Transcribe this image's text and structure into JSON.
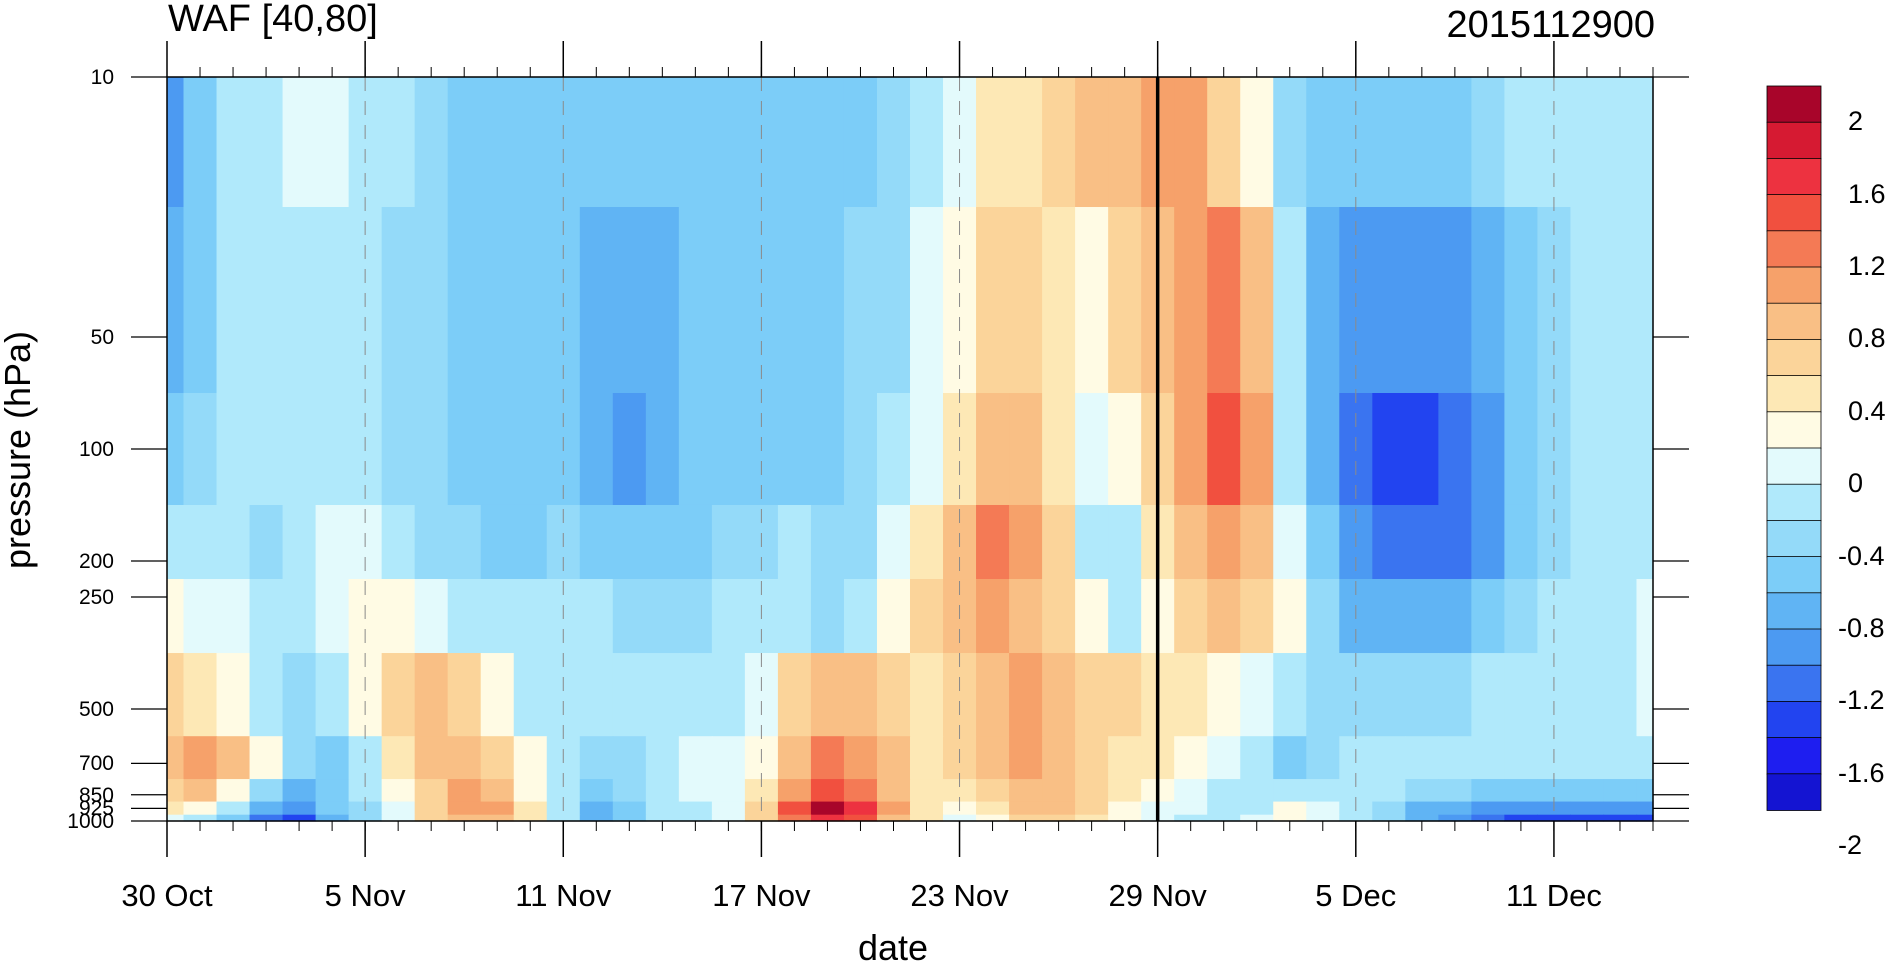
{
  "chart_data": {
    "type": "heatmap",
    "subtype": "filled-contour time-pressure cross section",
    "title": "WAF [40,80]",
    "subtitle": "2015112900",
    "xlabel": "date",
    "ylabel": "pressure (hPa)",
    "x_start": "2015-10-30",
    "x_end": "2015-12-14",
    "x_ticks": [
      {
        "date": "2015-10-30",
        "label": "30 Oct"
      },
      {
        "date": "2015-11-05",
        "label": "5 Nov"
      },
      {
        "date": "2015-11-11",
        "label": "11 Nov"
      },
      {
        "date": "2015-11-17",
        "label": "17 Nov"
      },
      {
        "date": "2015-11-23",
        "label": "23 Nov"
      },
      {
        "date": "2015-11-29",
        "label": "29 Nov"
      },
      {
        "date": "2015-12-05",
        "label": "5 Dec"
      },
      {
        "date": "2015-12-11",
        "label": "11 Dec"
      }
    ],
    "y_levels_hPa": [
      10,
      50,
      100,
      200,
      250,
      500,
      700,
      850,
      925,
      1000
    ],
    "y_tick_labels": [
      "10",
      "50",
      "100",
      "200",
      "250",
      "500",
      "700",
      "850",
      "925",
      "1000"
    ],
    "ylim": [
      1000,
      10
    ],
    "y_scale": "log",
    "marked_date": "2015-11-29",
    "colorbar": {
      "levels": [
        -2.2,
        -2,
        -1.8,
        -1.6,
        -1.4,
        -1.2,
        -1,
        -0.8,
        -0.6,
        -0.4,
        -0.2,
        0,
        0.2,
        0.4,
        0.6,
        0.8,
        1,
        1.2,
        1.4,
        1.6,
        1.8,
        2,
        2.2
      ],
      "labels": [
        "2",
        "1.6",
        "1.2",
        "0.8",
        "0.4",
        "0",
        "-0.4",
        "-0.8",
        "-1.2",
        "-1.6",
        "-2"
      ],
      "colors": [
        "#1414d2",
        "#1e1ef0",
        "#2244f0",
        "#3a74f0",
        "#4c9af2",
        "#60b4f4",
        "#7ccdf8",
        "#94daf9",
        "#b0e9fb",
        "#e3fafc",
        "#fffbe4",
        "#fde8b5",
        "#fbd49a",
        "#f9bf85",
        "#f6a16a",
        "#f47a55",
        "#f1503f",
        "#ed3240",
        "#d61a32",
        "#a8052a"
      ]
    },
    "grid": "dashed vertical lines at date ticks",
    "legend": "colorbar at right",
    "values": [
      [
        -1.3,
        -1.0,
        -0.6,
        -0.5,
        -0.4,
        -0.4,
        -0.5,
        -0.6,
        -0.8,
        -0.9,
        -0.9,
        -1.0,
        -1.0,
        -1.0,
        -1.0,
        -1.0,
        -1.0,
        -1.0,
        -1.0,
        -1.0,
        -0.9,
        -0.9,
        -0.8,
        -0.6,
        -0.3,
        0.0,
        0.1,
        0.3,
        0.4,
        0.5,
        0.7,
        0.6,
        0.3,
        -0.2,
        -0.8,
        -1.0,
        -1.0,
        -1.0,
        -1.0,
        -1.0,
        -0.8,
        -0.6,
        -0.5,
        -0.5,
        -0.5,
        -0.5
      ],
      [
        -1.2,
        -0.9,
        -0.6,
        -0.5,
        -0.5,
        -0.5,
        -0.6,
        -0.7,
        -0.8,
        -1.0,
        -1.0,
        -1.0,
        -1.0,
        -1.1,
        -1.2,
        -1.1,
        -1.0,
        -1.0,
        -1.0,
        -0.9,
        -0.9,
        -0.8,
        -0.7,
        -0.4,
        -0.1,
        0.2,
        0.3,
        0.0,
        -0.1,
        0.2,
        0.5,
        0.7,
        0.8,
        0.4,
        -0.5,
        -1.1,
        -1.3,
        -1.4,
        -1.4,
        -1.4,
        -1.2,
        -0.9,
        -0.7,
        -0.6,
        -0.5,
        -0.5
      ],
      [
        -0.9,
        -0.7,
        -0.5,
        -0.5,
        -0.5,
        -0.5,
        -0.6,
        -0.7,
        -0.8,
        -1.0,
        -1.0,
        -1.0,
        -0.9,
        -1.2,
        -1.3,
        -1.2,
        -1.0,
        -1.0,
        -1.0,
        -0.9,
        -0.9,
        -0.8,
        -0.6,
        -0.3,
        0.1,
        0.4,
        0.5,
        0.1,
        -0.4,
        -0.2,
        0.3,
        0.7,
        1.0,
        0.6,
        -0.5,
        -1.2,
        -1.5,
        -1.7,
        -1.7,
        -1.6,
        -1.3,
        -1.0,
        -0.7,
        -0.6,
        -0.5,
        -0.5
      ],
      [
        -0.6,
        -0.5,
        -0.6,
        -0.7,
        -0.5,
        -0.4,
        -0.4,
        -0.6,
        -0.7,
        -0.8,
        -0.9,
        -0.9,
        -0.8,
        -0.9,
        -1.0,
        -1.0,
        -0.9,
        -0.8,
        -0.7,
        -0.6,
        -0.8,
        -0.7,
        -0.4,
        0.0,
        0.4,
        0.8,
        0.7,
        0.2,
        -0.5,
        -0.6,
        0.0,
        0.5,
        0.7,
        0.5,
        -0.3,
        -1.0,
        -1.4,
        -1.5,
        -1.6,
        -1.5,
        -1.3,
        -1.0,
        -0.7,
        -0.6,
        -0.5,
        -0.5
      ],
      [
        -0.2,
        -0.3,
        -0.4,
        -0.5,
        -0.6,
        -0.4,
        -0.2,
        -0.1,
        -0.3,
        -0.5,
        -0.6,
        -0.6,
        -0.5,
        -0.6,
        -0.7,
        -0.8,
        -0.7,
        -0.6,
        -0.5,
        -0.6,
        -0.7,
        -0.5,
        -0.1,
        0.3,
        0.5,
        0.6,
        0.5,
        0.3,
        -0.2,
        -0.5,
        -0.2,
        0.2,
        0.4,
        0.3,
        -0.2,
        -0.8,
        -1.1,
        -1.2,
        -1.2,
        -1.2,
        -1.0,
        -0.8,
        -0.6,
        -0.5,
        -0.5,
        -0.4
      ],
      [
        0.2,
        0.0,
        -0.2,
        -0.5,
        -0.8,
        -0.6,
        -0.2,
        0.2,
        0.4,
        0.2,
        -0.2,
        -0.5,
        -0.6,
        -0.5,
        -0.5,
        -0.5,
        -0.5,
        -0.6,
        -0.3,
        0.2,
        0.4,
        0.5,
        0.3,
        0.0,
        0.2,
        0.4,
        0.6,
        0.4,
        0.3,
        0.2,
        0.1,
        0.0,
        -0.1,
        -0.3,
        -0.6,
        -0.7,
        -0.8,
        -0.7,
        -0.7,
        -0.7,
        -0.6,
        -0.6,
        -0.5,
        -0.5,
        -0.5,
        -0.4
      ],
      [
        0.4,
        0.6,
        0.4,
        -0.2,
        -0.7,
        -0.9,
        -0.5,
        0.1,
        0.4,
        0.4,
        0.2,
        -0.2,
        -0.6,
        -0.7,
        -0.8,
        -0.6,
        -0.4,
        -0.4,
        -0.1,
        0.5,
        0.8,
        0.7,
        0.4,
        0.1,
        0.3,
        0.5,
        0.6,
        0.4,
        0.2,
        0.1,
        0.0,
        -0.2,
        -0.4,
        -0.6,
        -0.9,
        -0.8,
        -0.6,
        -0.6,
        -0.5,
        -0.5,
        -0.6,
        -0.6,
        -0.5,
        -0.6,
        -0.6,
        -0.6
      ],
      [
        0.2,
        0.4,
        -0.2,
        -0.8,
        -1.2,
        -0.9,
        -0.6,
        -0.1,
        0.3,
        0.6,
        0.5,
        -0.1,
        -0.6,
        -0.9,
        -0.8,
        -0.6,
        -0.4,
        -0.3,
        0.0,
        0.6,
        1.1,
        0.9,
        0.5,
        0.1,
        0.0,
        0.2,
        0.5,
        0.5,
        0.2,
        0.0,
        -0.1,
        -0.3,
        -0.5,
        -0.6,
        -0.6,
        -0.5,
        -0.5,
        -0.6,
        -0.7,
        -0.8,
        -0.9,
        -0.9,
        -0.9,
        -0.9,
        -0.9,
        -0.9
      ],
      [
        0.0,
        -0.2,
        -0.6,
        -1.2,
        -1.4,
        -1.0,
        -0.7,
        -0.3,
        0.2,
        0.6,
        0.6,
        0.1,
        -0.5,
        -1.1,
        -0.9,
        -0.6,
        -0.5,
        -0.3,
        0.2,
        1.0,
        1.8,
        1.2,
        0.6,
        0.1,
        -0.1,
        0.1,
        0.4,
        0.5,
        0.2,
        -0.1,
        -0.3,
        -0.4,
        -0.5,
        -0.5,
        -0.2,
        -0.3,
        -0.5,
        -0.8,
        -1.1,
        -1.2,
        -1.3,
        -1.3,
        -1.3,
        -1.3,
        -1.3,
        -1.3
      ],
      [
        -0.3,
        -0.5,
        -0.9,
        -1.5,
        -1.8,
        -1.2,
        -0.8,
        -0.3,
        0.2,
        0.4,
        0.5,
        0.1,
        -0.5,
        -1.2,
        -1.0,
        -0.6,
        -0.5,
        -0.3,
        0.2,
        0.8,
        1.3,
        1.0,
        0.5,
        0.0,
        -0.3,
        -0.1,
        0.2,
        0.3,
        0.1,
        -0.2,
        -0.4,
        -0.6,
        -0.5,
        -0.3,
        -0.1,
        -0.3,
        -0.6,
        -0.8,
        -1.2,
        -1.4,
        -1.6,
        -1.7,
        -1.7,
        -1.7,
        -1.8,
        -1.7
      ],
      [
        -0.5,
        -0.7,
        -1.0,
        -1.5,
        -1.6,
        -1.1,
        -0.7,
        -0.3,
        0.1,
        0.3,
        0.4,
        0.1,
        -0.4,
        -1.1,
        -0.9,
        -0.6,
        -0.4,
        -0.3,
        0.0,
        0.4,
        0.6,
        0.5,
        0.2,
        -0.1,
        -0.4,
        -0.5,
        -0.3,
        -0.1,
        0.0,
        -0.2,
        -0.5,
        -0.7,
        -0.6,
        -0.3,
        -0.1,
        -0.4,
        -0.7,
        -0.8,
        -1.1,
        -1.3,
        -1.5,
        -1.6,
        -1.6,
        -1.6,
        -1.6,
        -1.6
      ],
      [
        -0.5,
        -0.6,
        -0.8,
        -1.0,
        -1.0,
        -0.8,
        -0.5,
        -0.2,
        0.2,
        0.4,
        0.2,
        -0.1,
        -0.3,
        -0.6,
        -0.6,
        -0.5,
        -0.4,
        -0.3,
        -0.1,
        0.1,
        0.2,
        0.1,
        0.0,
        -0.2,
        -0.4,
        -0.5,
        -0.4,
        -0.2,
        -0.1,
        -0.2,
        -0.4,
        -0.5,
        -0.4,
        -0.2,
        -0.1,
        -0.3,
        -0.5,
        -0.6,
        -0.8,
        -0.9,
        -1.0,
        -1.1,
        -1.1,
        -1.1,
        -1.2,
        -1.1
      ]
    ]
  }
}
